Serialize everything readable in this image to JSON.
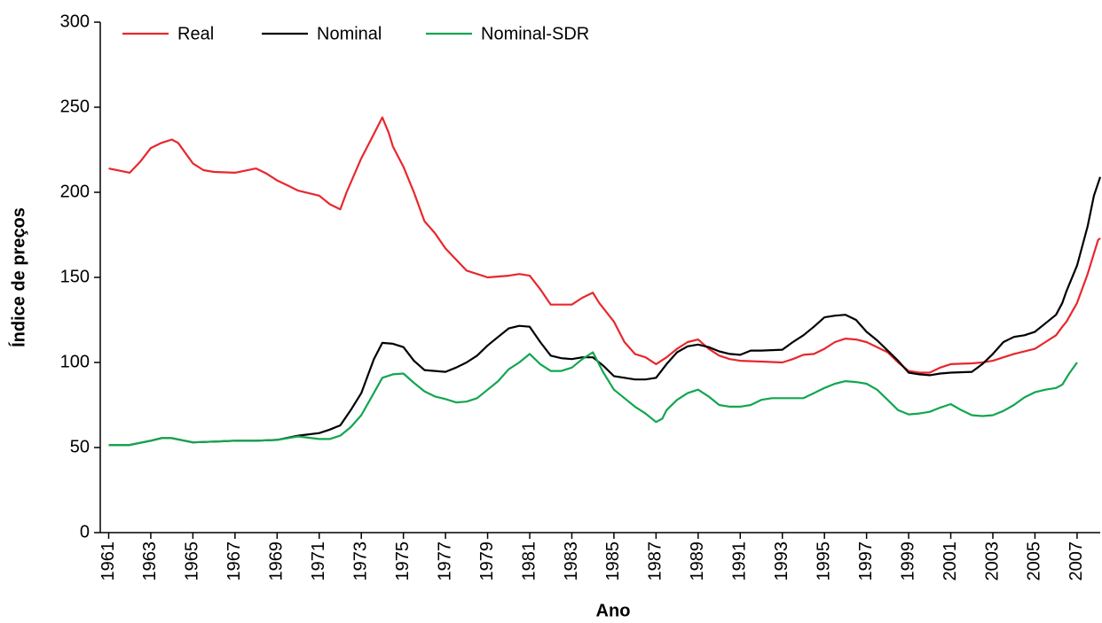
{
  "chart_data": {
    "type": "line",
    "xlabel": "Ano",
    "ylabel": "Índice de preços",
    "xlim": [
      1960.6,
      2008.1
    ],
    "ylim": [
      0,
      300
    ],
    "xticks": [
      1961,
      1963,
      1965,
      1967,
      1969,
      1971,
      1973,
      1975,
      1977,
      1979,
      1981,
      1983,
      1985,
      1987,
      1989,
      1991,
      1993,
      1995,
      1997,
      1999,
      2001,
      2003,
      2005,
      2007
    ],
    "yticks": [
      0,
      50,
      100,
      150,
      200,
      250,
      300
    ],
    "grid": false,
    "legend": "top-left",
    "series": [
      {
        "name": "Real",
        "color": "#e8272d",
        "x": [
          1961,
          1962,
          1962.5,
          1963,
          1963.5,
          1964,
          1964.3,
          1965,
          1965.5,
          1966,
          1967,
          1968,
          1968.5,
          1969,
          1969.5,
          1970,
          1971,
          1971.5,
          1972,
          1972.3,
          1973,
          1973.5,
          1974,
          1974.3,
          1974.5,
          1975,
          1975.5,
          1976,
          1976.5,
          1977,
          1978,
          1979,
          1980,
          1980.5,
          1981,
          1981.5,
          1982,
          1983,
          1983.5,
          1984,
          1984.3,
          1985,
          1985.5,
          1986,
          1986.5,
          1987,
          1987.5,
          1988,
          1988.5,
          1989,
          1989.5,
          1990,
          1990.5,
          1991,
          1992,
          1993,
          1993.5,
          1994,
          1994.5,
          1995,
          1995.5,
          1996,
          1996.5,
          1997,
          1997.5,
          1998,
          1998.5,
          1999,
          1999.5,
          2000,
          2000.5,
          2001,
          2002,
          2002.5,
          2003,
          2003.5,
          2004,
          2005,
          2005.5,
          2006,
          2006.3,
          2006.5,
          2007,
          2007.5,
          2008,
          2008.1
        ],
        "values": [
          214,
          211.5,
          218,
          226,
          229,
          231,
          229,
          217,
          213,
          212,
          211.5,
          214,
          211,
          207,
          204,
          201,
          198,
          193,
          190,
          200,
          220,
          232,
          244,
          235,
          227,
          215,
          200,
          183,
          176,
          167,
          154,
          150,
          151,
          152,
          151,
          143,
          134,
          134,
          138,
          141,
          135,
          124,
          112,
          105,
          103,
          99,
          103,
          108,
          112,
          113.5,
          108,
          104,
          102,
          101,
          100.5,
          100,
          102,
          104.5,
          105,
          108,
          112,
          114,
          113.5,
          112,
          109,
          106,
          100,
          95,
          94,
          94,
          97,
          99,
          99.5,
          100,
          101,
          103,
          105,
          108,
          112,
          116,
          121,
          124,
          135,
          152,
          172,
          173
        ]
      },
      {
        "name": "Nominal",
        "color": "#000000",
        "x": [
          1961,
          1962,
          1963,
          1963.5,
          1964,
          1965,
          1966,
          1967,
          1968,
          1969,
          1970,
          1971,
          1971.5,
          1972,
          1972.5,
          1973,
          1973.3,
          1973.6,
          1974,
          1974.5,
          1975,
          1975.5,
          1976,
          1976.5,
          1977,
          1977.5,
          1978,
          1978.5,
          1979,
          1979.5,
          1980,
          1980.5,
          1981,
          1981.5,
          1982,
          1982.5,
          1983,
          1983.5,
          1984,
          1984.5,
          1985,
          1985.5,
          1986,
          1986.5,
          1987,
          1987.5,
          1988,
          1988.5,
          1989,
          1989.5,
          1990,
          1990.5,
          1991,
          1991.5,
          1992,
          1993,
          1993.5,
          1994,
          1994.5,
          1995,
          1995.5,
          1996,
          1996.5,
          1997,
          1997.5,
          1998,
          1998.5,
          1999,
          1999.5,
          2000,
          2000.5,
          2001,
          2002,
          2002.5,
          2003,
          2003.5,
          2004,
          2004.5,
          2005,
          2005.5,
          2006,
          2006.3,
          2006.5,
          2007,
          2007.5,
          2007.8,
          2008.1
        ],
        "values": [
          51.5,
          51.5,
          54,
          55.5,
          55.5,
          53,
          53.5,
          54,
          54,
          54.5,
          57,
          58.5,
          60.5,
          63,
          72,
          82,
          92,
          102,
          111.5,
          111,
          109,
          101,
          95.5,
          95,
          94.5,
          97,
          100,
          104,
          110,
          115,
          120,
          121.5,
          121,
          112,
          104,
          102.5,
          102,
          103,
          103,
          98,
          92,
          91,
          90,
          90,
          91,
          99,
          106,
          109.5,
          110.5,
          109,
          106.5,
          105,
          104.5,
          107,
          107,
          107.5,
          112,
          116,
          121,
          126.5,
          127.5,
          128,
          125,
          118,
          113,
          107,
          101,
          94,
          93,
          92.5,
          93.5,
          94,
          94.5,
          99,
          105,
          112,
          115,
          116,
          118,
          123,
          128,
          135,
          142,
          157,
          180,
          198,
          209
        ]
      },
      {
        "name": "Nominal-SDR",
        "color": "#12a650",
        "x": [
          1961,
          1962,
          1963,
          1963.5,
          1964,
          1965,
          1966,
          1967,
          1968,
          1969,
          1970,
          1971,
          1971.5,
          1972,
          1972.5,
          1973,
          1973.5,
          1974,
          1974.5,
          1975,
          1975.5,
          1976,
          1976.5,
          1977,
          1977.5,
          1978,
          1978.5,
          1979,
          1979.5,
          1980,
          1980.5,
          1981,
          1981.5,
          1982,
          1982.5,
          1983,
          1983.5,
          1984,
          1984.5,
          1985,
          1985.5,
          1986,
          1986.5,
          1987,
          1987.3,
          1987.5,
          1988,
          1988.5,
          1989,
          1989.5,
          1990,
          1990.5,
          1991,
          1991.5,
          1992,
          1992.5,
          1993,
          1994,
          1994.5,
          1995,
          1995.5,
          1996,
          1996.5,
          1997,
          1997.5,
          1998,
          1998.5,
          1999,
          1999.5,
          2000,
          2000.5,
          2001,
          2001.5,
          2002,
          2002.5,
          2003,
          2003.5,
          2004,
          2004.5,
          2005,
          2005.5,
          2006,
          2006.3,
          2006.6,
          2007
        ],
        "values": [
          51.5,
          51.5,
          54,
          55.5,
          55.5,
          53,
          53.5,
          54,
          54,
          54.5,
          56.5,
          55,
          55,
          57,
          62,
          69,
          80,
          91,
          93,
          93.5,
          88,
          83,
          80,
          78.5,
          76.5,
          77,
          79,
          84,
          89,
          96,
          100,
          105,
          99,
          95,
          95,
          97,
          102,
          106,
          94,
          84,
          79,
          74,
          70,
          65,
          67,
          72,
          78,
          82,
          84,
          80,
          75,
          74,
          74,
          75,
          78,
          79,
          79,
          79,
          82,
          85,
          87.5,
          89,
          88.5,
          87.5,
          84,
          78,
          72,
          69.5,
          70,
          71,
          73.5,
          75.5,
          72,
          69,
          68.5,
          69,
          71.5,
          75,
          79.5,
          82.5,
          84,
          85,
          87,
          93,
          100
        ]
      }
    ]
  }
}
